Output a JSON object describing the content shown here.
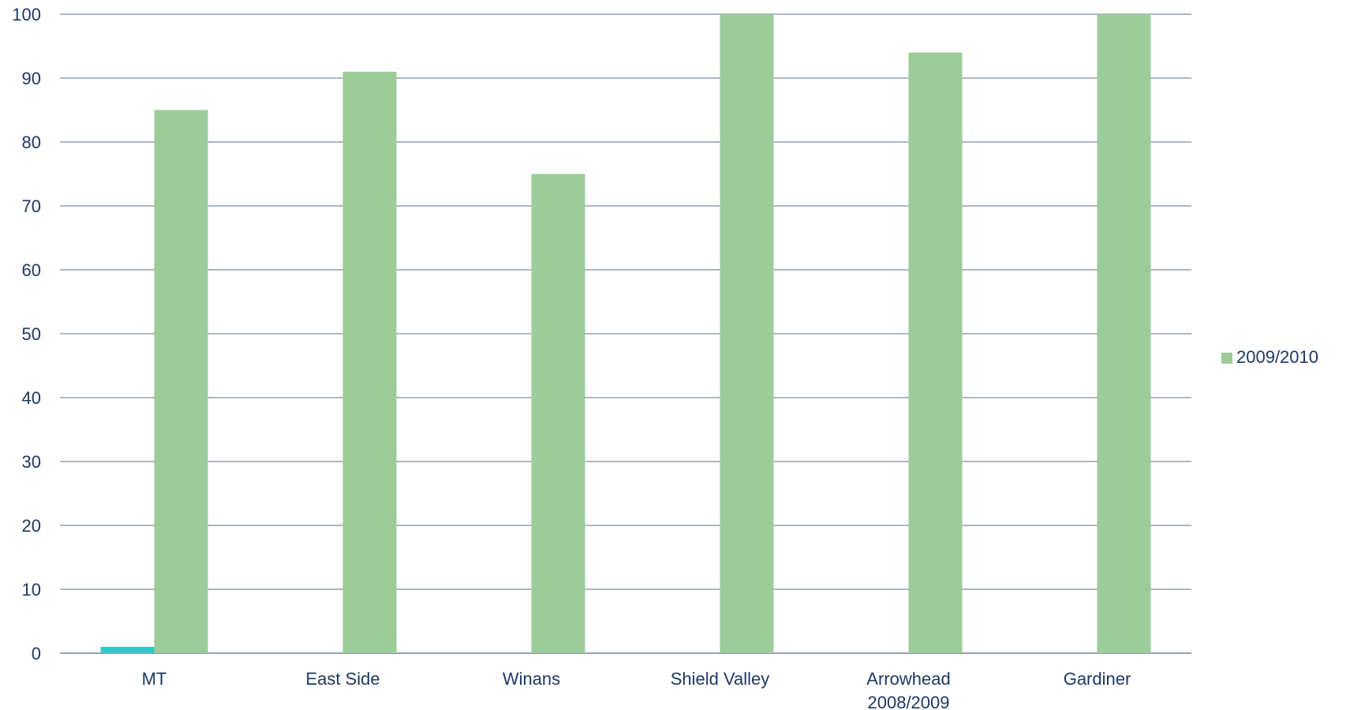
{
  "chart_data": {
    "type": "bar",
    "categories": [
      [
        "MT"
      ],
      [
        "East Side"
      ],
      [
        "Winans"
      ],
      [
        "Shield Valley"
      ],
      [
        "Arrowhead",
        "2008/2009"
      ],
      [
        "Gardiner"
      ]
    ],
    "series": [
      {
        "values": [
          1,
          0,
          0,
          0,
          0,
          0
        ],
        "color": "#33c7c9"
      },
      {
        "name": "2009/2010",
        "values": [
          85,
          91,
          75,
          100,
          94,
          100
        ],
        "color": "#9bcc99"
      }
    ],
    "ylim": [
      0,
      100
    ],
    "yticks": [
      0,
      10,
      20,
      30,
      40,
      50,
      60,
      70,
      80,
      90,
      100
    ],
    "grid": true,
    "legend_position": "right",
    "title": "",
    "xlabel": "",
    "ylabel": "",
    "colors": {
      "text": "#1f3864",
      "grid": "#7f8c9a"
    }
  }
}
